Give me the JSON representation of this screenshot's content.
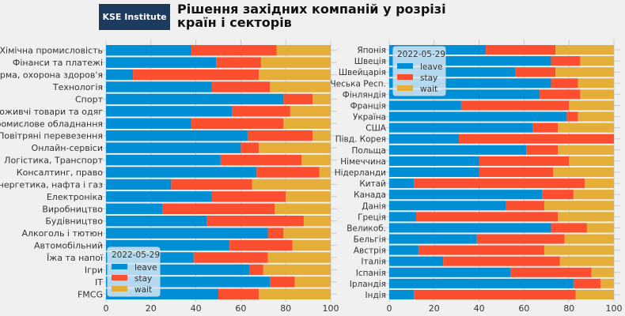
{
  "header": {
    "logo": "KSE Institute",
    "title_line1": "Рішення західних компаній у розрізі",
    "title_line2": "країн і секторів"
  },
  "colors": {
    "leave": "#008fd5",
    "stay": "#fc4f30",
    "wait": "#e5ae38",
    "background": "#f0f0f0"
  },
  "chart_data": [
    {
      "type": "bar",
      "orientation": "horizontal-stacked",
      "legend_title": "2022-05-29",
      "legend_placement": "lower-left",
      "xlim": [
        0,
        100
      ],
      "xticks": [
        "0",
        "20",
        "40",
        "60",
        "80",
        "100"
      ],
      "grid": true,
      "categories": [
        "Хімічна промисловість",
        "Фінанси та платежі",
        "Фарма, охорона здоров'я",
        "Технологія",
        "Спорт",
        "Споживчі товари та одяг",
        "Промислове обладнання",
        "Повітряні перевезення",
        "Онлайн-сервіси",
        "Логістика, Транспорт",
        "Консалтинг, право",
        "Енергетика, нафта і газ",
        "Електроніка",
        "Виробництво",
        "Будівництво",
        "Алкоголь і тютюн",
        "Автомобільний",
        "Їжа та напої",
        "Ігри",
        "IT",
        "FMCG"
      ],
      "series": [
        {
          "name": "leave",
          "values": [
            38,
            49,
            12,
            47,
            79,
            56,
            38,
            63,
            60,
            51,
            67,
            29,
            47,
            25,
            45,
            72,
            55,
            39,
            64,
            73,
            50
          ]
        },
        {
          "name": "stay",
          "values": [
            38,
            20,
            56,
            26,
            13,
            26,
            41,
            29,
            8,
            36,
            28,
            36,
            33,
            50,
            43,
            7,
            28,
            33,
            6,
            11,
            18
          ]
        },
        {
          "name": "wait",
          "values": [
            24,
            31,
            32,
            27,
            8,
            18,
            21,
            8,
            32,
            13,
            5,
            35,
            20,
            25,
            12,
            21,
            17,
            28,
            30,
            16,
            32
          ]
        }
      ]
    },
    {
      "type": "bar",
      "orientation": "horizontal-stacked",
      "legend_title": "2022-05-29",
      "legend_placement": "upper-left",
      "xlim": [
        0,
        100
      ],
      "xticks": [
        "0",
        "20",
        "40",
        "60",
        "80",
        "100"
      ],
      "grid": true,
      "categories": [
        "Японія",
        "Швеція",
        "Швейцарія",
        "Чеська Респ.",
        "Фінляндія",
        "Франція",
        "Україна",
        "США",
        "Півд. Корея",
        "Польща",
        "Німеччина",
        "Нідерланди",
        "Китай",
        "Канада",
        "Данія",
        "Греція",
        "Великоб.",
        "Бельгія",
        "Австрія",
        "Італія",
        "Іспанія",
        "Ірландія",
        "Індія"
      ],
      "series": [
        {
          "name": "leave",
          "values": [
            43,
            72,
            56,
            72,
            67,
            32,
            79,
            64,
            31,
            61,
            40,
            40,
            11,
            68,
            52,
            12,
            72,
            39,
            13,
            24,
            54,
            82,
            11
          ]
        },
        {
          "name": "stay",
          "values": [
            31,
            13,
            18,
            12,
            18,
            48,
            5,
            11,
            69,
            14,
            40,
            33,
            76,
            14,
            17,
            63,
            16,
            39,
            56,
            52,
            36,
            12,
            72
          ]
        },
        {
          "name": "wait",
          "values": [
            26,
            15,
            26,
            16,
            15,
            20,
            16,
            25,
            0,
            25,
            20,
            27,
            13,
            18,
            31,
            25,
            12,
            22,
            31,
            24,
            10,
            6,
            17
          ]
        }
      ]
    }
  ]
}
